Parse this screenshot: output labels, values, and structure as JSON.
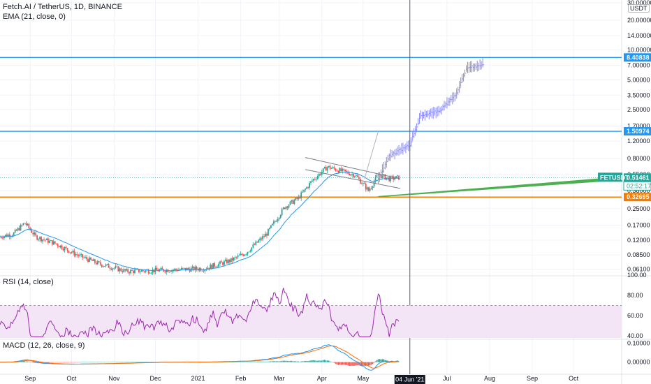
{
  "header": {
    "symbol_line": "Fetch.AI / TetherUS, 1D, BINANCE",
    "ema_line": "EMA (21, close, 0)",
    "rsi_line": "RSI (14, close)",
    "macd_line": "MACD (12, 26, close, 9)",
    "currency": "USDT"
  },
  "colors": {
    "up": "#26a69a",
    "down": "#ef5350",
    "projection": "#8c8cf0",
    "ema": "#2196f3",
    "hline_blue": "#2196f3",
    "hline_orange": "#f57c00",
    "trend_green": "#4caf50",
    "rsi": "#9c27b0",
    "rsi_band": "#f3e5f5",
    "macd": "#2196f3",
    "signal": "#ff6d00",
    "crosshair": "#5d606b"
  },
  "price_axis": {
    "ticks": [
      "30.00000",
      "20.00000",
      "14.00000",
      "10.00000",
      "7.00000",
      "5.00000",
      "3.50000",
      "2.50000",
      "1.70000",
      "1.20000",
      "0.80000",
      "0.55000",
      "0.38000",
      "0.25000",
      "0.17000",
      "0.12000",
      "0.08500",
      "0.06100"
    ],
    "labels": [
      {
        "text": "8.40838",
        "value": 8.40838,
        "color": "#2196f3"
      },
      {
        "text": "1.50974",
        "value": 1.50974,
        "color": "#2196f3"
      },
      {
        "text": "0.51461",
        "value": 0.51461,
        "color": "#26a69a"
      },
      {
        "text": "0.32695",
        "value": 0.32695,
        "color": "#f57c00"
      }
    ],
    "countdown": "02:52:17",
    "symbol_tag": "FETUSDT"
  },
  "rsi_axis": {
    "ticks": [
      "100.00",
      "80.00",
      "60.00",
      "40.00"
    ]
  },
  "macd_axis": {
    "ticks": [
      "0.10000",
      "0.00000"
    ]
  },
  "time_axis": {
    "ticks": [
      "Sep",
      "Oct",
      "Nov",
      "Dec",
      "2021",
      "Feb",
      "Mar",
      "Apr",
      "May",
      "Jul",
      "Aug",
      "Sep",
      "Oct"
    ],
    "crosshair_label": "04 Jun '21"
  },
  "chart_data": {
    "type": "candlestick",
    "scale": "log",
    "ylim": [
      0.055,
      32
    ],
    "title": "Fetch.AI / TetherUS, 1D, BINANCE",
    "x_range": [
      "2020-08-10",
      "2021-11-05"
    ],
    "horizontal_levels": [
      8.40838,
      1.50974,
      0.51461,
      0.32695
    ],
    "crosshair_date": "2021-06-04",
    "price_waypoints": [
      {
        "date": "2020-08-10",
        "price": 0.13
      },
      {
        "date": "2020-08-20",
        "price": 0.14
      },
      {
        "date": "2020-08-28",
        "price": 0.18
      },
      {
        "date": "2020-09-05",
        "price": 0.13
      },
      {
        "date": "2020-09-20",
        "price": 0.11
      },
      {
        "date": "2020-10-05",
        "price": 0.085
      },
      {
        "date": "2020-10-20",
        "price": 0.07
      },
      {
        "date": "2020-11-10",
        "price": 0.058
      },
      {
        "date": "2020-12-10",
        "price": 0.06
      },
      {
        "date": "2021-01-05",
        "price": 0.062
      },
      {
        "date": "2021-01-25",
        "price": 0.075
      },
      {
        "date": "2021-02-05",
        "price": 0.09
      },
      {
        "date": "2021-02-20",
        "price": 0.14
      },
      {
        "date": "2021-03-05",
        "price": 0.26
      },
      {
        "date": "2021-03-15",
        "price": 0.32
      },
      {
        "date": "2021-03-25",
        "price": 0.48
      },
      {
        "date": "2021-04-05",
        "price": 0.66
      },
      {
        "date": "2021-04-15",
        "price": 0.6
      },
      {
        "date": "2021-04-25",
        "price": 0.55
      },
      {
        "date": "2021-05-05",
        "price": 0.38
      },
      {
        "date": "2021-05-12",
        "price": 0.55
      },
      {
        "date": "2021-05-20",
        "price": 0.5
      },
      {
        "date": "2021-05-27",
        "price": 0.51461
      }
    ],
    "projection_waypoints": [
      {
        "date": "2021-05-12",
        "price": 0.5
      },
      {
        "date": "2021-05-20",
        "price": 0.85
      },
      {
        "date": "2021-06-04",
        "price": 1.1
      },
      {
        "date": "2021-06-12",
        "price": 2.2
      },
      {
        "date": "2021-06-25",
        "price": 2.4
      },
      {
        "date": "2021-07-08",
        "price": 3.6
      },
      {
        "date": "2021-07-15",
        "price": 6.5
      },
      {
        "date": "2021-07-27",
        "price": 7.2
      }
    ],
    "rsi": {
      "ylim": [
        38,
        100
      ],
      "ticks": [
        100,
        80,
        60,
        40
      ],
      "band": [
        30,
        70
      ]
    },
    "macd": {
      "ylim": [
        -0.06,
        0.12
      ],
      "ticks": [
        0.1,
        0
      ]
    }
  }
}
